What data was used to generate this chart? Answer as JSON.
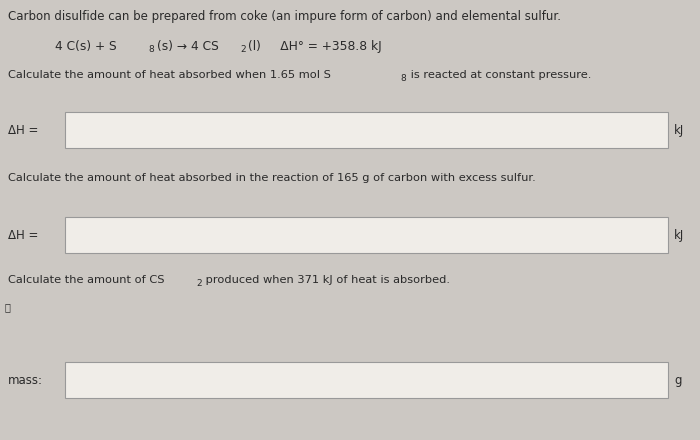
{
  "bg_color": "#ccc8c3",
  "box_bg": "#f0ede8",
  "box_border": "#999999",
  "text_color": "#2a2a2a",
  "title_text": "Carbon disulfide can be prepared from coke (an impure form of carbon) and elemental sulfur.",
  "eq_part1": "4 C(s) + S",
  "eq_sub8": "8",
  "eq_part2": "(s) → 4 CS",
  "eq_sub2": "2",
  "eq_part3": "(l)     ΔH° = +358.8 kJ",
  "q1_text_a": "Calculate the amount of heat absorbed when 1.65 mol S",
  "q1_text_sub": "8",
  "q1_text_b": " is reacted at constant pressure.",
  "q1_label": "ΔH =",
  "q1_unit": "kJ",
  "q2_text": "Calculate the amount of heat absorbed in the reaction of 165 g of carbon with excess sulfur.",
  "q2_label": "ΔH =",
  "q2_unit": "kJ",
  "q3_text_a": "Calculate the amount of CS",
  "q3_text_sub": "2",
  "q3_text_b": " produced when 371 kJ of heat is absorbed.",
  "q3_label": "mass:",
  "q3_unit": "g",
  "font_size_title": 8.5,
  "font_size_eq": 8.8,
  "font_size_q": 8.2,
  "font_size_label": 8.5,
  "font_size_sub": 6.5
}
